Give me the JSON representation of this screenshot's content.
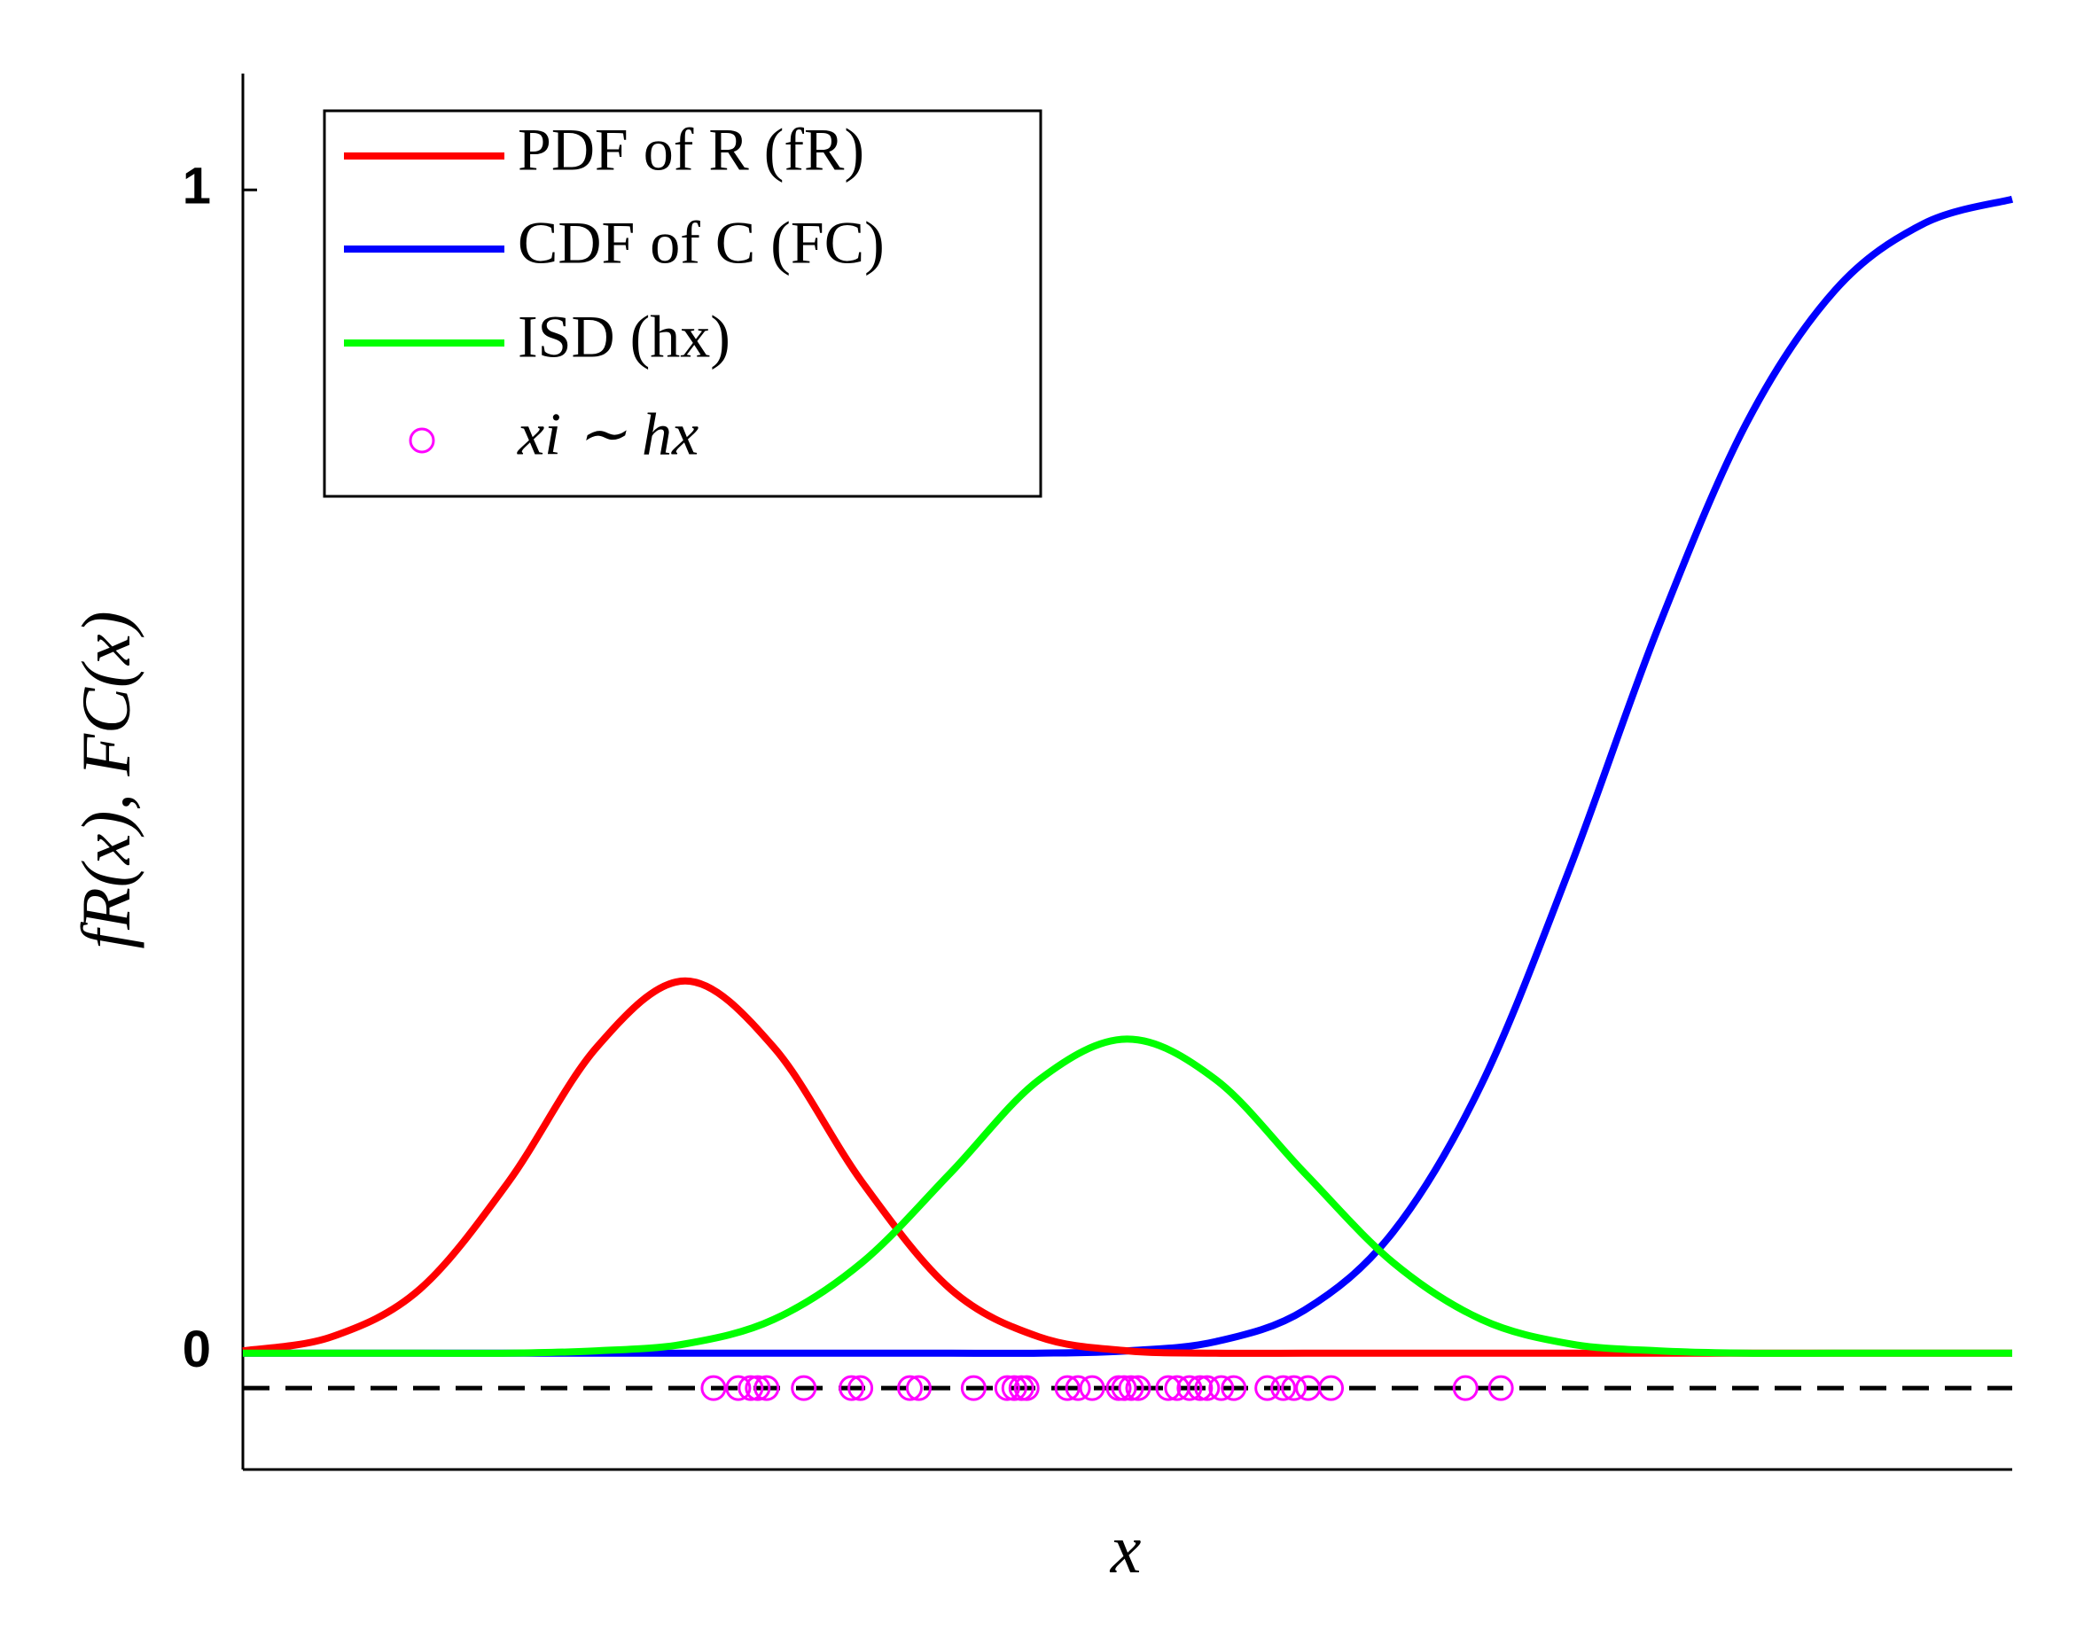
{
  "chart_data": {
    "type": "line",
    "x_label": "x",
    "y_label": "fR(x), FC(x)",
    "x": [
      0,
      0.5,
      1,
      1.5,
      2,
      2.5,
      3,
      3.5,
      4,
      4.5,
      5,
      5.5,
      6,
      6.5,
      7,
      7.5,
      8,
      8.5,
      9,
      9.5,
      10
    ],
    "xlim": [
      0,
      10
    ],
    "ylim": [
      -0.1,
      1.1
    ],
    "yticks": [
      0,
      1
    ],
    "legend": "upper left",
    "series": [
      {
        "name": "PDF of R (fR)",
        "color": "#ff0000",
        "values": [
          0.002,
          0.014,
          0.055,
          0.147,
          0.263,
          0.32,
          0.263,
          0.147,
          0.055,
          0.014,
          0.002,
          0,
          0,
          0,
          0,
          0,
          0,
          0,
          0,
          0,
          0
        ]
      },
      {
        "name": "CDF of C (FC)",
        "color": "#0000ff",
        "values": [
          0,
          0,
          0,
          0,
          0,
          0,
          0,
          0,
          0,
          0,
          0.002,
          0.01,
          0.037,
          0.104,
          0.231,
          0.417,
          0.624,
          0.8,
          0.914,
          0.971,
          0.992
        ]
      },
      {
        "name": "ISD (hx)",
        "color": "#00ff00",
        "values": [
          0,
          0,
          0,
          0,
          0.002,
          0.008,
          0.029,
          0.078,
          0.155,
          0.235,
          0.27,
          0.235,
          0.155,
          0.078,
          0.029,
          0.008,
          0.002,
          0,
          0,
          0,
          0
        ]
      }
    ],
    "scatter": {
      "name": "xi ∼ hx",
      "color": "#ff00ff",
      "x": [
        2.66,
        2.8,
        2.87,
        2.91,
        2.96,
        3.17,
        3.44,
        3.49,
        3.77,
        3.82,
        4.13,
        4.32,
        4.36,
        4.4,
        4.43,
        4.66,
        4.72,
        4.8,
        4.95,
        4.98,
        5.02,
        5.06,
        5.23,
        5.28,
        5.35,
        5.41,
        5.45,
        5.53,
        5.6,
        5.79,
        5.88,
        5.94,
        6.02,
        6.15,
        6.91,
        7.11
      ],
      "y": [
        -0.03,
        -0.03,
        -0.03,
        -0.03,
        -0.03,
        -0.03,
        -0.03,
        -0.03,
        -0.03,
        -0.03,
        -0.03,
        -0.03,
        -0.03,
        -0.03,
        -0.03,
        -0.03,
        -0.03,
        -0.03,
        -0.03,
        -0.03,
        -0.03,
        -0.03,
        -0.03,
        -0.03,
        -0.03,
        -0.03,
        -0.03,
        -0.03,
        -0.03,
        -0.03,
        -0.03,
        -0.03,
        -0.03,
        -0.03,
        -0.03,
        -0.03
      ]
    },
    "hline": {
      "value": -0.03,
      "color": "#000000"
    }
  }
}
